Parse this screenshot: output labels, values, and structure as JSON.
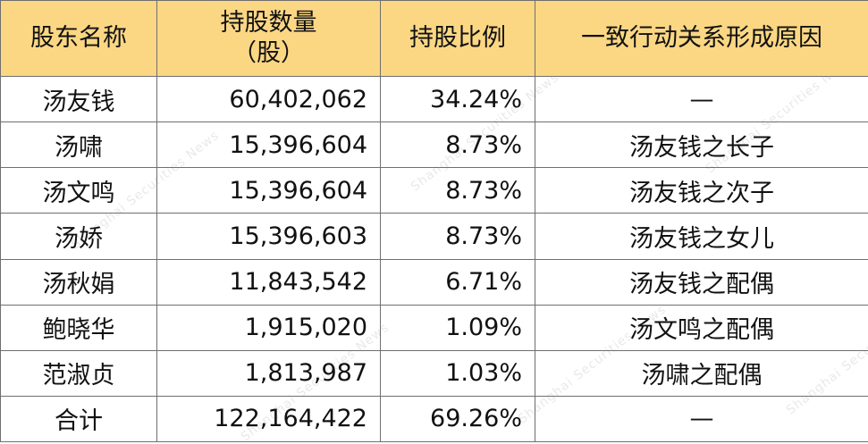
{
  "watermark": {
    "text": "Shanghai Securities News"
  },
  "table": {
    "headers": {
      "name": "股东名称",
      "shares_line1": "持股数量",
      "shares_line2": "（股）",
      "ratio": "持股比例",
      "reason": "一致行动关系形成原因"
    },
    "rows": [
      {
        "name": "汤友钱",
        "shares": "60,402,062",
        "ratio": "34.24%",
        "reason": "—"
      },
      {
        "name": "汤啸",
        "shares": "15,396,604",
        "ratio": "8.73%",
        "reason": "汤友钱之长子"
      },
      {
        "name": "汤文鸣",
        "shares": "15,396,604",
        "ratio": "8.73%",
        "reason": "汤友钱之次子"
      },
      {
        "name": "汤娇",
        "shares": "15,396,603",
        "ratio": "8.73%",
        "reason": "汤友钱之女儿"
      },
      {
        "name": "汤秋娟",
        "shares": "11,843,542",
        "ratio": "6.71%",
        "reason": "汤友钱之配偶"
      },
      {
        "name": "鲍晓华",
        "shares": "1,915,020",
        "ratio": "1.09%",
        "reason": "汤文鸣之配偶"
      },
      {
        "name": "范淑贞",
        "shares": "1,813,987",
        "ratio": "1.03%",
        "reason": "汤啸之配偶"
      },
      {
        "name": "合计",
        "shares": "122,164,422",
        "ratio": "69.26%",
        "reason": "—"
      }
    ]
  }
}
